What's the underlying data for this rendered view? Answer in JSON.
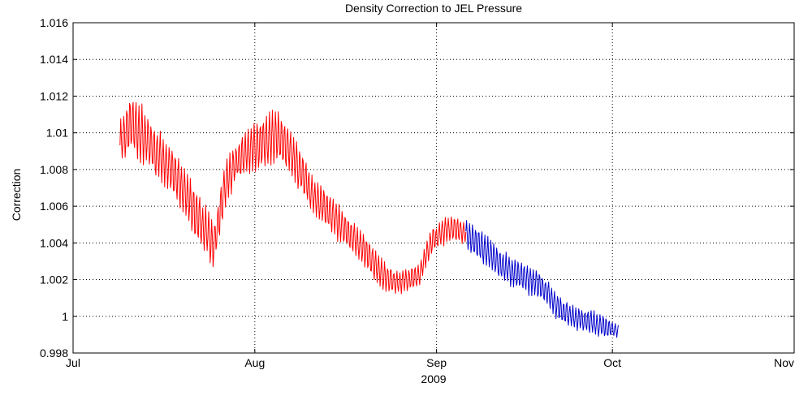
{
  "chart_data": {
    "type": "line",
    "title": "Density Correction to JEL Pressure",
    "xlabel": "2009",
    "ylabel": "Correction",
    "x_type": "date",
    "xlim": [
      "2009-07-01",
      "2009-11-01"
    ],
    "ylim": [
      0.998,
      1.016
    ],
    "x_ticks": [
      {
        "date": "2009-07-01",
        "label": "Jul"
      },
      {
        "date": "2009-08-01",
        "label": "Aug"
      },
      {
        "date": "2009-09-01",
        "label": "Sep"
      },
      {
        "date": "2009-10-01",
        "label": "Oct"
      },
      {
        "date": "2009-11-01",
        "label": "Nov"
      }
    ],
    "y_ticks": [
      {
        "value": 0.998,
        "label": "0.998"
      },
      {
        "value": 1.0,
        "label": "1"
      },
      {
        "value": 1.002,
        "label": "1.002"
      },
      {
        "value": 1.004,
        "label": "1.004"
      },
      {
        "value": 1.006,
        "label": "1.006"
      },
      {
        "value": 1.008,
        "label": "1.008"
      },
      {
        "value": 1.01,
        "label": "1.01"
      },
      {
        "value": 1.012,
        "label": "1.012"
      },
      {
        "value": 1.014,
        "label": "1.014"
      },
      {
        "value": 1.016,
        "label": "1.016"
      }
    ],
    "grid": true,
    "series": [
      {
        "color": "#ff0000",
        "x": [
          "2009-07-09",
          "2009-07-11",
          "2009-07-13",
          "2009-07-15",
          "2009-07-18",
          "2009-07-20",
          "2009-07-22",
          "2009-07-24",
          "2009-07-25",
          "2009-07-27",
          "2009-07-29",
          "2009-07-31",
          "2009-08-03",
          "2009-08-05",
          "2009-08-07",
          "2009-08-09",
          "2009-08-11",
          "2009-08-13",
          "2009-08-15",
          "2009-08-17",
          "2009-08-19",
          "2009-08-21",
          "2009-08-23",
          "2009-08-25",
          "2009-08-27",
          "2009-08-29",
          "2009-08-31",
          "2009-09-02",
          "2009-09-04",
          "2009-09-06"
        ],
        "y": [
          1.0095,
          1.0105,
          1.0098,
          1.009,
          1.008,
          1.0068,
          1.0055,
          1.0045,
          1.0038,
          1.0072,
          1.0085,
          1.009,
          1.0096,
          1.0098,
          1.009,
          1.0078,
          1.0065,
          1.006,
          1.0052,
          1.0045,
          1.0038,
          1.003,
          1.0022,
          1.0018,
          1.002,
          1.0022,
          1.004,
          1.0046,
          1.0048,
          1.0045
        ],
        "amplitude": [
          0.0012,
          0.0017,
          0.0017,
          0.0015,
          0.0014,
          0.0015,
          0.0015,
          0.0014,
          0.0014,
          0.0013,
          0.0012,
          0.0014,
          0.0016,
          0.0015,
          0.0014,
          0.0013,
          0.0012,
          0.0012,
          0.0011,
          0.001,
          0.001,
          0.001,
          0.0009,
          0.0007,
          0.0007,
          0.0007,
          0.0008,
          0.0008,
          0.0008,
          0.0006
        ]
      },
      {
        "color": "#0000cc",
        "x": [
          "2009-09-06",
          "2009-09-08",
          "2009-09-10",
          "2009-09-12",
          "2009-09-14",
          "2009-09-16",
          "2009-09-18",
          "2009-09-20",
          "2009-09-22",
          "2009-09-24",
          "2009-09-26",
          "2009-09-28",
          "2009-09-30",
          "2009-10-02"
        ],
        "y": [
          1.0045,
          1.004,
          1.0034,
          1.0028,
          1.0024,
          1.0021,
          1.0018,
          1.0012,
          1.0004,
          1.0,
          0.9998,
          0.9996,
          0.9994,
          0.9992
        ],
        "amplitude": [
          0.001,
          0.001,
          0.0009,
          0.0009,
          0.0009,
          0.0009,
          0.0009,
          0.0008,
          0.0008,
          0.0007,
          0.0007,
          0.0007,
          0.0006,
          0.0004
        ]
      }
    ]
  }
}
